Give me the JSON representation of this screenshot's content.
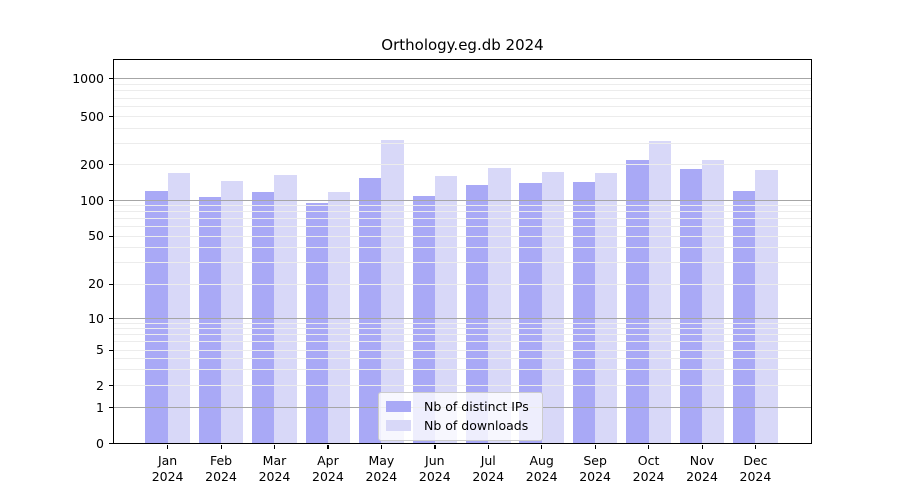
{
  "title": "Orthology.eg.db 2024",
  "chart_data": {
    "type": "bar",
    "title": "Orthology.eg.db 2024",
    "categories": [
      "Jan",
      "Feb",
      "Mar",
      "Apr",
      "May",
      "Jun",
      "Jul",
      "Aug",
      "Sep",
      "Oct",
      "Nov",
      "Dec"
    ],
    "x_tick_second_line": "2024",
    "series": [
      {
        "name": "Nb of distinct IPs",
        "color": "#a9a9f6",
        "values": [
          122,
          109,
          120,
          97,
          157,
          111,
          136,
          141,
          145,
          222,
          187,
          122
        ]
      },
      {
        "name": "Nb of downloads",
        "color": "#d8d8f8",
        "values": [
          172,
          147,
          166,
          120,
          325,
          161,
          189,
          174,
          173,
          319,
          222,
          183
        ]
      }
    ],
    "y_axis": {
      "scale": "log-like",
      "major_ticks": [
        0,
        1,
        2,
        5,
        10,
        20,
        50,
        100,
        200,
        500,
        1000
      ],
      "minor_gridlines": [
        3,
        4,
        6,
        7,
        8,
        9,
        30,
        40,
        60,
        70,
        80,
        90,
        300,
        400,
        600,
        700,
        800,
        900
      ]
    },
    "grid": true,
    "legend_position": "bottom-center",
    "colors": {
      "major_gridline": "#a6a6a6",
      "minor_gridline": "#ececec",
      "axis_frame": "#000000",
      "background": "#ffffff"
    }
  }
}
